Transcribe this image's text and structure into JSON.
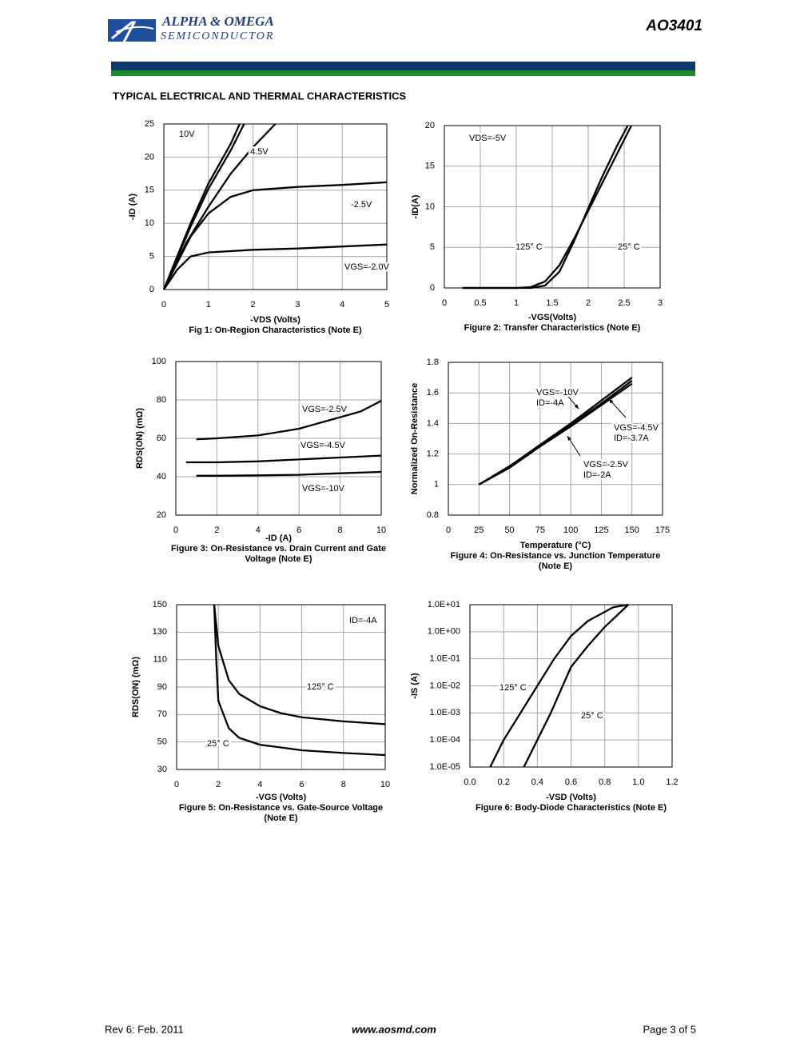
{
  "header": {
    "company": "ALPHA & OMEGA",
    "division": "SEMICONDUCTOR",
    "part": "AO3401",
    "section": "TYPICAL ELECTRICAL AND THERMAL CHARACTERISTICS"
  },
  "footer": {
    "revision": "Rev 6: Feb. 2011",
    "website": "www.aosmd.com",
    "page": "Page 3 of 5"
  },
  "chart_data": [
    {
      "type": "line",
      "title": [
        "Fig 1: On-Region Characteristics (Note E)"
      ],
      "xlabel": "-VDS (Volts)",
      "ylabel": "-ID (A)",
      "xlim": [
        0,
        5
      ],
      "ylim": [
        0,
        25
      ],
      "xticks": [
        0,
        1,
        2,
        3,
        4,
        5
      ],
      "yticks": [
        0,
        5,
        10,
        15,
        20,
        25
      ],
      "grid": true,
      "color": "#000000",
      "series": [
        {
          "name": "10V",
          "x": [
            0,
            0.3,
            0.6,
            1,
            1.5,
            1.7
          ],
          "values": [
            0,
            5,
            10,
            16,
            22,
            25
          ]
        },
        {
          "x": [
            0,
            0.6,
            1,
            1.5,
            1.8
          ],
          "values": [
            0,
            9.5,
            15.2,
            21,
            25
          ]
        },
        {
          "name": "4.5V",
          "x": [
            0,
            0.5,
            1,
            1.5,
            2,
            2.5
          ],
          "values": [
            0,
            7,
            12.5,
            17.5,
            21.5,
            25
          ]
        },
        {
          "name": "-2.5V",
          "x": [
            0,
            0.3,
            0.6,
            1,
            1.5,
            2,
            3,
            4,
            5
          ],
          "values": [
            0,
            4,
            8,
            11.5,
            14,
            15,
            15.5,
            15.8,
            16.2
          ]
        },
        {
          "name": "VGS=-2.0V",
          "x": [
            0,
            0.3,
            0.6,
            1,
            2,
            3,
            4,
            5
          ],
          "values": [
            0,
            3,
            5,
            5.6,
            6,
            6.2,
            6.5,
            6.8
          ]
        }
      ]
    },
    {
      "type": "line",
      "title": [
        "Figure 2: Transfer Characteristics (Note E)"
      ],
      "xlabel": "-VGS(Volts)",
      "ylabel": "-ID(A)",
      "xlim": [
        0,
        3
      ],
      "ylim": [
        0,
        20
      ],
      "xticks": [
        0,
        0.5,
        1,
        1.5,
        2,
        2.5,
        3
      ],
      "yticks": [
        0,
        5,
        10,
        15,
        20
      ],
      "grid": true,
      "color": "#000000",
      "annotations": [
        "VDS=-5V"
      ],
      "series": [
        {
          "name": "125° C",
          "x": [
            0.25,
            1,
            1.2,
            1.4,
            1.6,
            1.8,
            2,
            2.2,
            2.4,
            2.6
          ],
          "values": [
            0,
            0,
            0.1,
            0.8,
            2.8,
            6,
            9.5,
            13,
            16.5,
            20
          ]
        },
        {
          "name": "25° C",
          "x": [
            0.25,
            1.2,
            1.4,
            1.6,
            1.8,
            2,
            2.2,
            2.4,
            2.55
          ],
          "values": [
            0,
            0,
            0.3,
            2,
            5.7,
            9.8,
            13.8,
            17.5,
            20
          ]
        }
      ]
    },
    {
      "type": "line",
      "title": [
        "Figure 3: On-Resistance vs. Drain Current and Gate",
        "Voltage (Note E)"
      ],
      "xlabel": "-ID (A)",
      "ylabel": "RDS(ON) (mΩ)",
      "xlim": [
        0,
        10
      ],
      "ylim": [
        20,
        100
      ],
      "xticks": [
        0,
        2,
        4,
        6,
        8,
        10
      ],
      "yticks": [
        20,
        40,
        60,
        80,
        100
      ],
      "grid": true,
      "color": "#000000",
      "series": [
        {
          "name": "VGS=-2.5V",
          "x": [
            1,
            2,
            4,
            6,
            8,
            9,
            10
          ],
          "values": [
            59.5,
            60,
            61.5,
            65,
            71,
            74,
            79.5
          ]
        },
        {
          "name": "VGS=-4.5V",
          "x": [
            0.5,
            2,
            4,
            6,
            8,
            10
          ],
          "values": [
            47.5,
            47.5,
            48,
            49,
            50,
            51
          ]
        },
        {
          "name": "VGS=-10V",
          "x": [
            1,
            2,
            4,
            6,
            8,
            10
          ],
          "values": [
            40.5,
            40.5,
            40.7,
            41,
            41.8,
            42.5
          ]
        }
      ]
    },
    {
      "type": "line",
      "title": [
        "Figure 4: On-Resistance vs. Junction Temperature",
        "(Note E)"
      ],
      "xlabel": "Temperature (°C)",
      "ylabel": "Normalized On-Resistance",
      "xlim": [
        0,
        175
      ],
      "ylim": [
        0.8,
        1.8
      ],
      "xticks": [
        0,
        25,
        50,
        75,
        100,
        125,
        150,
        175
      ],
      "yticks": [
        0.8,
        1,
        1.2,
        1.4,
        1.6,
        1.8
      ],
      "grid": true,
      "color": "#000000",
      "series": [
        {
          "name": "VGS=-10V",
          "condition": "ID=-4A",
          "x": [
            25,
            50,
            75,
            100,
            125,
            150
          ],
          "values": [
            1,
            1.12,
            1.25,
            1.39,
            1.53,
            1.68
          ]
        },
        {
          "name": "VGS=-4.5V",
          "condition": "ID=-3.7A",
          "x": [
            25,
            50,
            75,
            100,
            125,
            150
          ],
          "values": [
            1,
            1.12,
            1.26,
            1.4,
            1.55,
            1.7
          ]
        },
        {
          "name": "VGS=-2.5V",
          "condition": "ID=-2A",
          "x": [
            25,
            50,
            75,
            100,
            125,
            150
          ],
          "values": [
            1,
            1.11,
            1.25,
            1.38,
            1.52,
            1.66
          ]
        }
      ]
    },
    {
      "type": "line",
      "title": [
        "Figure 5: On-Resistance vs. Gate-Source Voltage",
        "(Note E)"
      ],
      "xlabel": "-VGS (Volts)",
      "ylabel": "RDS(ON) (mΩ)",
      "xlim": [
        0,
        10
      ],
      "ylim": [
        30,
        150
      ],
      "xticks": [
        0,
        2,
        4,
        6,
        8,
        10
      ],
      "yticks": [
        30,
        50,
        70,
        90,
        110,
        130,
        150
      ],
      "grid": true,
      "color": "#000000",
      "annotations": [
        "ID=-4A"
      ],
      "series": [
        {
          "name": "125° C",
          "x": [
            1.8,
            2,
            2.5,
            3,
            4,
            5,
            6,
            8,
            10
          ],
          "values": [
            150,
            120,
            95,
            85,
            76,
            71,
            68,
            65,
            63
          ]
        },
        {
          "name": "25° C",
          "x": [
            1.8,
            1.9,
            2,
            2.5,
            3,
            4,
            5,
            6,
            8,
            10
          ],
          "values": [
            150,
            110,
            80,
            60,
            53,
            48,
            46,
            44,
            42,
            40.5
          ]
        }
      ]
    },
    {
      "type": "line",
      "title": [
        "Figure 6: Body-Diode Characteristics (Note E)"
      ],
      "xlabel": "-VSD (Volts)",
      "ylabel": "-IS (A)",
      "log_y": true,
      "xlim": [
        0,
        1.2
      ],
      "ylim": [
        1e-05,
        10
      ],
      "xticks": [
        {
          "value": 0,
          "label": "0.0"
        },
        0.2,
        0.4,
        0.6,
        0.8,
        {
          "value": 1,
          "label": "1.0"
        },
        1.2
      ],
      "yticks": [
        {
          "value": 1e-05,
          "label": "1.0E-05"
        },
        {
          "value": 0.0001,
          "label": "1.0E-04"
        },
        {
          "value": 0.001,
          "label": "1.0E-03"
        },
        {
          "value": 0.01,
          "label": "1.0E-02"
        },
        {
          "value": 0.1,
          "label": "1.0E-01"
        },
        {
          "value": 1,
          "label": "1.0E+00"
        },
        {
          "value": 10,
          "label": "1.0E+01"
        }
      ],
      "grid": true,
      "color": "#000000",
      "series": [
        {
          "name": "125° C",
          "x": [
            0.12,
            0.2,
            0.3,
            0.4,
            0.5,
            0.6,
            0.7,
            0.85,
            0.94
          ],
          "values": [
            1e-05,
            0.0001,
            0.001,
            0.01,
            0.1,
            0.7,
            2.5,
            8,
            10
          ]
        },
        {
          "name": "25° C",
          "x": [
            0.32,
            0.4,
            0.48,
            0.55,
            0.6,
            0.7,
            0.8,
            0.94
          ],
          "values": [
            1e-05,
            0.0001,
            0.001,
            0.01,
            0.05,
            0.3,
            1.5,
            10
          ]
        }
      ]
    }
  ]
}
